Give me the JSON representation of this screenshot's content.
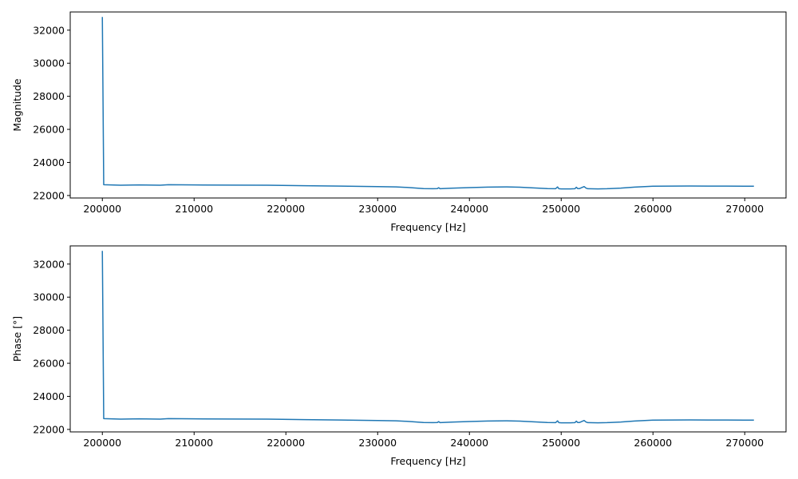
{
  "chart_data": [
    {
      "type": "line",
      "title": "",
      "xlabel": "Frequency [Hz]",
      "ylabel": "Magnitude",
      "xlim": [
        196500,
        274500
      ],
      "ylim": [
        21850,
        33100
      ],
      "x_ticks": [
        200000,
        210000,
        220000,
        230000,
        240000,
        250000,
        260000,
        270000
      ],
      "y_ticks": [
        22000,
        24000,
        26000,
        28000,
        30000,
        32000
      ],
      "grid": false,
      "line_color": "#1f77b4",
      "series": [
        {
          "x": [
            200000,
            200150,
            202000,
            204000,
            205500,
            206300,
            207200,
            210000,
            214000,
            218000,
            222000,
            226000,
            230000,
            232000,
            233500,
            235000,
            236000,
            236500,
            236650,
            236800,
            238000,
            240000,
            242000,
            244000,
            245500,
            247000,
            248500,
            249400,
            249600,
            249750,
            250000,
            251000,
            251500,
            251650,
            251800,
            252000,
            252500,
            252700,
            252900,
            254000,
            255000,
            256500,
            258000,
            260000,
            262000,
            264000,
            266000,
            268000,
            270000,
            271000
          ],
          "values": [
            32800,
            22650,
            22620,
            22640,
            22630,
            22620,
            22650,
            22640,
            22630,
            22620,
            22590,
            22570,
            22540,
            22520,
            22480,
            22420,
            22410,
            22420,
            22470,
            22410,
            22440,
            22480,
            22510,
            22520,
            22500,
            22460,
            22420,
            22410,
            22520,
            22410,
            22400,
            22400,
            22410,
            22500,
            22420,
            22420,
            22540,
            22450,
            22410,
            22400,
            22410,
            22450,
            22510,
            22560,
            22570,
            22575,
            22570,
            22570,
            22565,
            22560
          ]
        }
      ]
    },
    {
      "type": "line",
      "title": "",
      "xlabel": "Frequency [Hz]",
      "ylabel": "Phase [°]",
      "xlim": [
        196500,
        274500
      ],
      "ylim": [
        21850,
        33100
      ],
      "x_ticks": [
        200000,
        210000,
        220000,
        230000,
        240000,
        250000,
        260000,
        270000
      ],
      "y_ticks": [
        22000,
        24000,
        26000,
        28000,
        30000,
        32000
      ],
      "grid": false,
      "line_color": "#1f77b4",
      "series": [
        {
          "x": [
            200000,
            200150,
            202000,
            204000,
            205500,
            206300,
            207200,
            210000,
            214000,
            218000,
            222000,
            226000,
            230000,
            232000,
            233500,
            235000,
            236000,
            236500,
            236650,
            236800,
            238000,
            240000,
            242000,
            244000,
            245500,
            247000,
            248500,
            249400,
            249600,
            249750,
            250000,
            251000,
            251500,
            251650,
            251800,
            252000,
            252500,
            252700,
            252900,
            254000,
            255000,
            256500,
            258000,
            260000,
            262000,
            264000,
            266000,
            268000,
            270000,
            271000
          ],
          "values": [
            32800,
            22650,
            22620,
            22640,
            22630,
            22620,
            22650,
            22640,
            22630,
            22620,
            22590,
            22570,
            22540,
            22520,
            22480,
            22420,
            22410,
            22420,
            22470,
            22410,
            22440,
            22480,
            22510,
            22520,
            22500,
            22460,
            22420,
            22410,
            22520,
            22410,
            22400,
            22400,
            22410,
            22500,
            22420,
            22420,
            22540,
            22450,
            22410,
            22400,
            22410,
            22450,
            22510,
            22560,
            22570,
            22575,
            22570,
            22570,
            22565,
            22560
          ]
        }
      ]
    }
  ]
}
